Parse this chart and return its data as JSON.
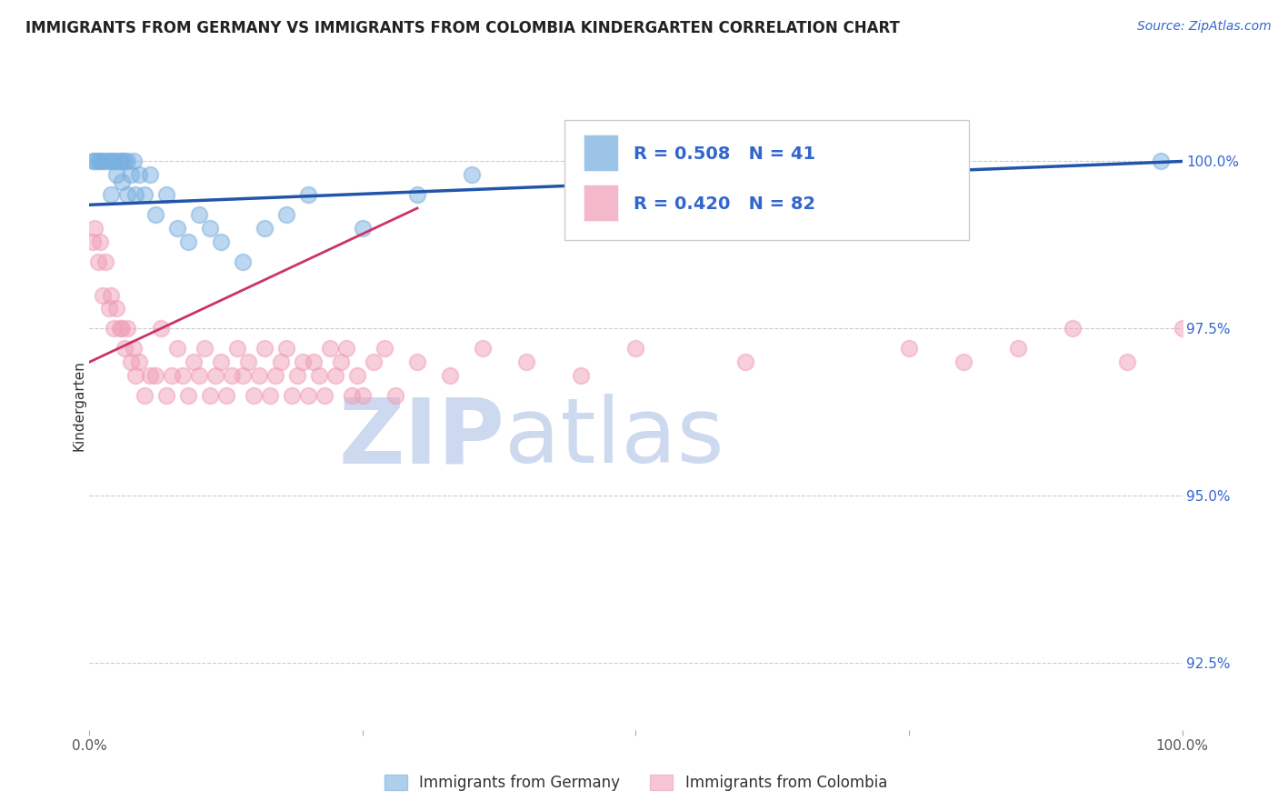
{
  "title": "IMMIGRANTS FROM GERMANY VS IMMIGRANTS FROM COLOMBIA KINDERGARTEN CORRELATION CHART",
  "source_text": "Source: ZipAtlas.com",
  "ylabel": "Kindergarten",
  "right_yticks": [
    100.0,
    97.5,
    95.0,
    92.5
  ],
  "right_ytick_labels": [
    "100.0%",
    "97.5%",
    "95.0%",
    "92.5%"
  ],
  "xmin": 0.0,
  "xmax": 100.0,
  "ymin": 91.5,
  "ymax": 101.2,
  "germany_color": "#7ab0e0",
  "colombia_color": "#f0a0b8",
  "germany_trendline_color": "#2255aa",
  "colombia_trendline_color": "#cc3366",
  "legend_R_germany": "R = 0.508",
  "legend_N_germany": "N = 41",
  "legend_R_colombia": "R = 0.420",
  "legend_N_colombia": "N = 82",
  "legend_text_color": "#3366cc",
  "watermark_color": "#ccd9ee",
  "germany_x": [
    0.3,
    0.5,
    0.8,
    1.0,
    1.2,
    1.5,
    1.8,
    2.0,
    2.0,
    2.2,
    2.5,
    2.5,
    2.8,
    3.0,
    3.0,
    3.2,
    3.5,
    3.5,
    3.8,
    4.0,
    4.2,
    4.5,
    5.0,
    5.5,
    6.0,
    7.0,
    8.0,
    9.0,
    10.0,
    11.0,
    12.0,
    14.0,
    16.0,
    18.0,
    20.0,
    25.0,
    30.0,
    35.0,
    55.0,
    75.0,
    98.0
  ],
  "germany_y": [
    100.0,
    100.0,
    100.0,
    100.0,
    100.0,
    100.0,
    100.0,
    100.0,
    99.5,
    100.0,
    100.0,
    99.8,
    100.0,
    100.0,
    99.7,
    100.0,
    100.0,
    99.5,
    99.8,
    100.0,
    99.5,
    99.8,
    99.5,
    99.8,
    99.2,
    99.5,
    99.0,
    98.8,
    99.2,
    99.0,
    98.8,
    98.5,
    99.0,
    99.2,
    99.5,
    99.0,
    99.5,
    99.8,
    99.2,
    99.5,
    100.0
  ],
  "colombia_x": [
    0.3,
    0.5,
    0.8,
    1.0,
    1.2,
    1.5,
    1.8,
    2.0,
    2.2,
    2.5,
    2.8,
    3.0,
    3.2,
    3.5,
    3.8,
    4.0,
    4.2,
    4.5,
    5.0,
    5.5,
    6.0,
    6.5,
    7.0,
    7.5,
    8.0,
    8.5,
    9.0,
    9.5,
    10.0,
    10.5,
    11.0,
    11.5,
    12.0,
    12.5,
    13.0,
    13.5,
    14.0,
    14.5,
    15.0,
    15.5,
    16.0,
    16.5,
    17.0,
    17.5,
    18.0,
    18.5,
    19.0,
    19.5,
    20.0,
    20.5,
    21.0,
    21.5,
    22.0,
    22.5,
    23.0,
    23.5,
    24.0,
    24.5,
    25.0,
    26.0,
    27.0,
    28.0,
    30.0,
    33.0,
    36.0,
    40.0,
    45.0,
    50.0,
    60.0,
    75.0,
    80.0,
    85.0,
    90.0,
    95.0,
    100.0,
    105.0,
    110.0,
    115.0,
    118.0,
    120.0,
    122.0,
    125.0
  ],
  "colombia_y": [
    98.8,
    99.0,
    98.5,
    98.8,
    98.0,
    98.5,
    97.8,
    98.0,
    97.5,
    97.8,
    97.5,
    97.5,
    97.2,
    97.5,
    97.0,
    97.2,
    96.8,
    97.0,
    96.5,
    96.8,
    96.8,
    97.5,
    96.5,
    96.8,
    97.2,
    96.8,
    96.5,
    97.0,
    96.8,
    97.2,
    96.5,
    96.8,
    97.0,
    96.5,
    96.8,
    97.2,
    96.8,
    97.0,
    96.5,
    96.8,
    97.2,
    96.5,
    96.8,
    97.0,
    97.2,
    96.5,
    96.8,
    97.0,
    96.5,
    97.0,
    96.8,
    96.5,
    97.2,
    96.8,
    97.0,
    97.2,
    96.5,
    96.8,
    96.5,
    97.0,
    97.2,
    96.5,
    97.0,
    96.8,
    97.2,
    97.0,
    96.8,
    97.2,
    97.0,
    97.2,
    97.0,
    97.2,
    97.5,
    97.0,
    97.5,
    97.2,
    97.5,
    97.8,
    97.5,
    97.8,
    98.0,
    98.2
  ],
  "bottom_legend_germany": "Immigrants from Germany",
  "bottom_legend_colombia": "Immigrants from Colombia",
  "germany_trendline_x": [
    0.0,
    100.0
  ],
  "germany_trendline_y": [
    99.35,
    100.0
  ],
  "colombia_trendline_x": [
    0.0,
    30.0
  ],
  "colombia_trendline_y": [
    97.0,
    99.3
  ]
}
